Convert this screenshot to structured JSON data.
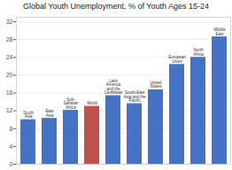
{
  "chart_data": {
    "type": "bar",
    "title": "Global Youth Unemployment, % of Youth Ages 15-24",
    "categories": [
      "South\nAsia",
      "East\nAsia",
      "Sub-\nSaharan\nAfrica",
      "World",
      "Latin\nAmerica\nand the\nCaribbean",
      "South-East\nAsia and the\nPacific",
      "United\nStates",
      "European\nUnion",
      "North\nAfrica",
      "Middle\nEast"
    ],
    "values": [
      10.0,
      10.3,
      12.1,
      13.0,
      15.4,
      13.6,
      16.7,
      22.4,
      24.0,
      28.6
    ],
    "colors": [
      "#4472C4",
      "#4472C4",
      "#4472C4",
      "#C0504D",
      "#4472C4",
      "#4472C4",
      "#4472C4",
      "#4472C4",
      "#4472C4",
      "#4472C4"
    ],
    "ylim": [
      0,
      33
    ],
    "yticks": [
      0,
      4,
      8,
      12,
      16,
      20,
      24,
      28,
      32
    ],
    "grid": true,
    "tick_labels": "y"
  }
}
